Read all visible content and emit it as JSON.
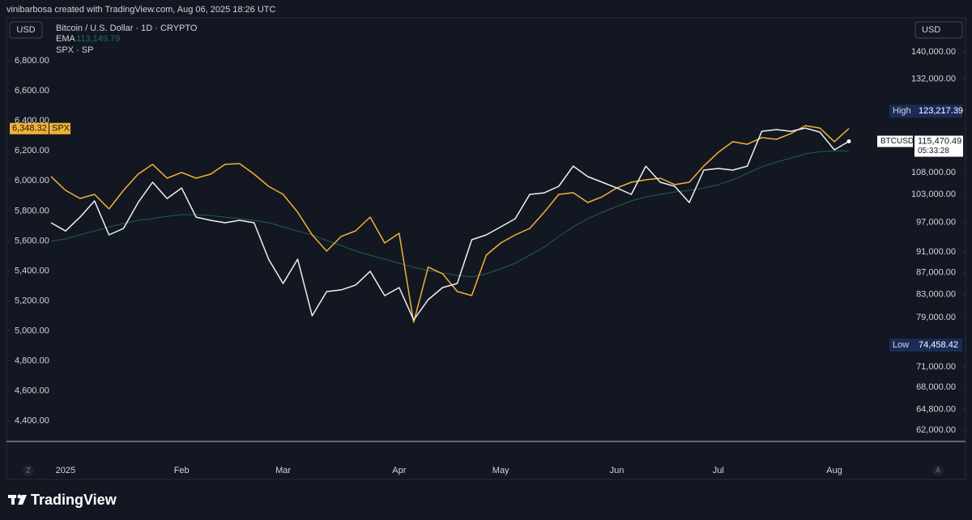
{
  "header": {
    "credit": "vinibarbosa created with TradingView.com, Aug 06, 2025 18:26 UTC",
    "left_currency": "USD",
    "right_currency": "USD"
  },
  "footer": {
    "brand": "TradingView",
    "left_button": "Z",
    "right_button": "A"
  },
  "chart_data": {
    "type": "line",
    "categories": [
      null,
      "2025",
      null,
      null,
      null,
      null,
      null,
      null,
      null,
      "Feb",
      null,
      null,
      null,
      null,
      null,
      null,
      "Mar",
      null,
      null,
      null,
      null,
      null,
      null,
      null,
      "Apr",
      null,
      null,
      null,
      null,
      null,
      null,
      "May",
      null,
      null,
      null,
      null,
      null,
      null,
      null,
      "Jun",
      null,
      null,
      null,
      null,
      null,
      null,
      "Jul",
      null,
      null,
      null,
      null,
      null,
      null,
      null,
      "Aug",
      null
    ],
    "series": [
      {
        "name": "Bitcoin / U.S. Dollar · 1D · CRYPTO",
        "color": "#f0f0f0",
        "axis": "y2",
        "values": [
          96900,
          95200,
          98080,
          101570,
          94400,
          95720,
          101210,
          105730,
          102100,
          104440,
          98080,
          97410,
          96900,
          97410,
          96900,
          89590,
          85020,
          89590,
          79300,
          83550,
          83850,
          84730,
          87280,
          82820,
          84280,
          78600,
          82100,
          84280,
          85020,
          93410,
          94400,
          96050,
          97750,
          103000,
          103350,
          104820,
          109480,
          107030,
          105730,
          104440,
          103000,
          109480,
          105730,
          104820,
          101210,
          108530,
          108910,
          108530,
          109480,
          118010,
          118430,
          118010,
          118830,
          117800,
          113370,
          115470.49
        ]
      },
      {
        "name": "EMA",
        "color": "#1f5e52",
        "axis": "y2",
        "values": [
          93090,
          93580,
          94400,
          95200,
          96050,
          96740,
          97410,
          97750,
          98270,
          98610,
          98610,
          98430,
          98080,
          97750,
          97410,
          96900,
          96050,
          95200,
          94400,
          93260,
          92290,
          91170,
          90370,
          89590,
          88820,
          88040,
          87420,
          86960,
          86520,
          86220,
          86820,
          87730,
          88820,
          90370,
          91950,
          94070,
          96050,
          97750,
          99110,
          100340,
          101570,
          102450,
          103000,
          103540,
          103900,
          104440,
          105180,
          106290,
          107770,
          109300,
          110430,
          111400,
          112390,
          112970,
          113100,
          113149.79
        ]
      },
      {
        "name": "SPX · SP",
        "color": "#f2b234",
        "values": [
          6029,
          5937,
          5883,
          5910,
          5813,
          5937,
          6045,
          6110,
          6018,
          6056,
          6018,
          6045,
          6110,
          6115,
          6045,
          5964,
          5910,
          5791,
          5640,
          5532,
          5630,
          5667,
          5759,
          5586,
          5651,
          5058,
          5425,
          5381,
          5263,
          5236,
          5505,
          5586,
          5640,
          5683,
          5791,
          5910,
          5921,
          5856,
          5894,
          5953,
          5991,
          6007,
          6018,
          5975,
          5991,
          6099,
          6190,
          6261,
          6244,
          6288,
          6277,
          6315,
          6368,
          6352,
          6261,
          6348.32
        ]
      }
    ],
    "ylim": [
      4264,
      7097
    ],
    "yticks": [
      {
        "value": 4400,
        "label": "4,400.00"
      },
      {
        "value": 4600,
        "label": "4,600.00"
      },
      {
        "value": 4800,
        "label": "4,800.00"
      },
      {
        "value": 5000,
        "label": "5,000.00"
      },
      {
        "value": 5200,
        "label": "5,200.00"
      },
      {
        "value": 5400,
        "label": "5,400.00"
      },
      {
        "value": 5600,
        "label": "5,600.00"
      },
      {
        "value": 5800,
        "label": "5,800.00"
      },
      {
        "value": 6000,
        "label": "6,000.00"
      },
      {
        "value": 6200,
        "label": "6,200.00"
      },
      {
        "value": 6400,
        "label": "6,400.00"
      },
      {
        "value": 6600,
        "label": "6,600.00"
      },
      {
        "value": 6800,
        "label": "6,800.00"
      }
    ],
    "y2lim": [
      60500,
      151200
    ],
    "y2_log": true,
    "y2ticks": [
      {
        "value": 62000,
        "label": "62,000.00"
      },
      {
        "value": 64800,
        "label": "64,800.00"
      },
      {
        "value": 68000,
        "label": "68,000.00"
      },
      {
        "value": 71000,
        "label": "71,000.00"
      },
      {
        "value": 79000,
        "label": "79,000.00"
      },
      {
        "value": 83000,
        "label": "83,000.00"
      },
      {
        "value": 87000,
        "label": "87,000.00"
      },
      {
        "value": 91000,
        "label": "91,000.00"
      },
      {
        "value": 97000,
        "label": "97,000.00"
      },
      {
        "value": 103000,
        "label": "103,000.00"
      },
      {
        "value": 108000,
        "label": "108,000.00"
      },
      {
        "value": 132000,
        "label": "132,000.00"
      },
      {
        "value": 140000,
        "label": "140,000.00"
      }
    ],
    "grid": false,
    "ema_label": {
      "value": 113149.79,
      "label": "113,149.79"
    },
    "spx_last": {
      "name": "SPX",
      "value": 6348.32,
      "label": "6,348.32"
    },
    "btc_last": {
      "name": "BTCUSD",
      "value": 115470.49,
      "label": "115,470.49",
      "countdown": "05:33:28"
    },
    "high": {
      "name": "High",
      "value": 123217.39,
      "label": "123,217.39"
    },
    "low": {
      "name": "Low",
      "value": 74458.42,
      "label": "74,458.42"
    }
  }
}
